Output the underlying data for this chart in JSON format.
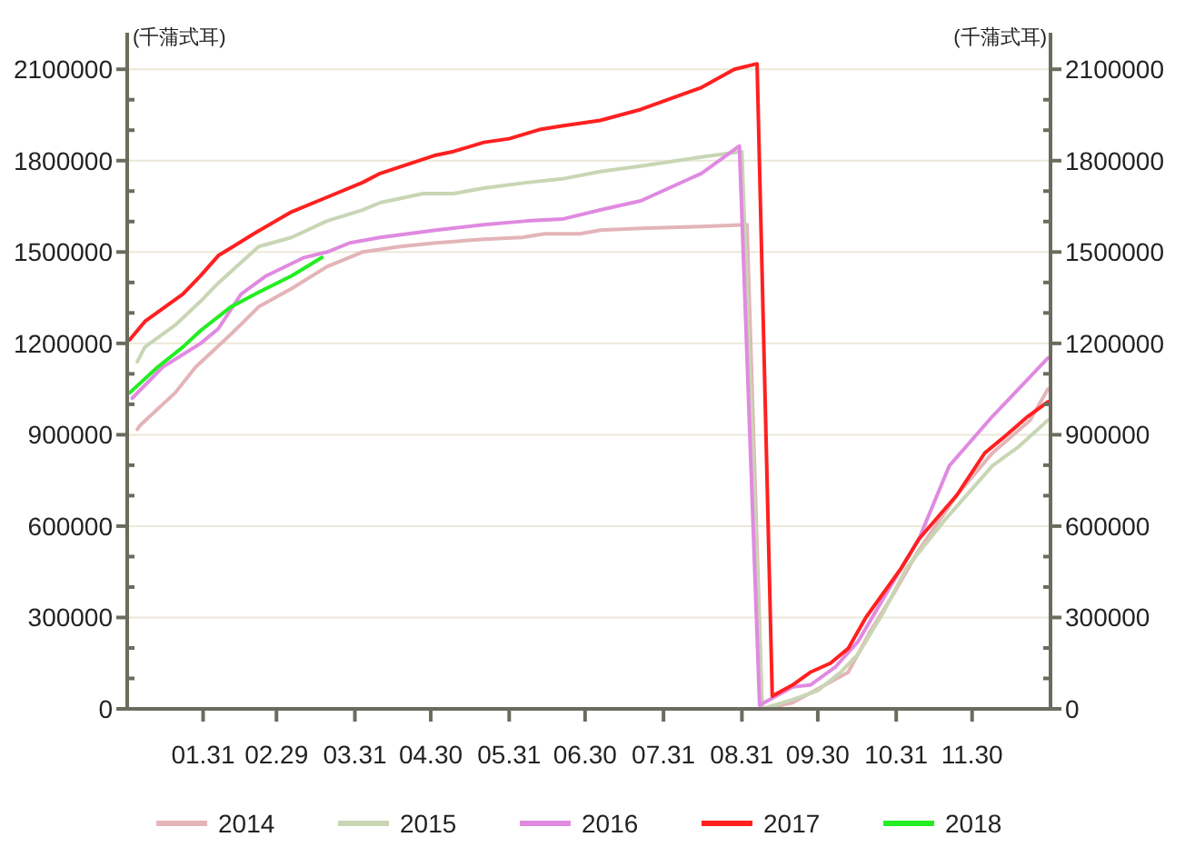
{
  "chart_data": {
    "type": "line",
    "ylabel": "(千蒲式耳)",
    "y2label": "(千蒲式耳)",
    "xlim": [
      "--01-01",
      "--12-31"
    ],
    "xticks": [
      {
        "value": "--01-31",
        "label": "01.31"
      },
      {
        "value": "--02-29",
        "label": "02.29"
      },
      {
        "value": "--03-31",
        "label": "03.31"
      },
      {
        "value": "--04-30",
        "label": "04.30"
      },
      {
        "value": "--05-31",
        "label": "05.31"
      },
      {
        "value": "--06-30",
        "label": "06.30"
      },
      {
        "value": "--07-31",
        "label": "07.31"
      },
      {
        "value": "--08-31",
        "label": "08.31"
      },
      {
        "value": "--09-30",
        "label": "09.30"
      },
      {
        "value": "--10-31",
        "label": "10.31"
      },
      {
        "value": "--11-30",
        "label": "11.30"
      }
    ],
    "ylim": [
      0,
      2220000
    ],
    "yticks": [
      0,
      {
        "value": 100000,
        "label": null
      },
      {
        "value": 200000,
        "label": null
      },
      300000,
      {
        "value": 400000,
        "label": null
      },
      {
        "value": 500000,
        "label": null
      },
      600000,
      {
        "value": 700000,
        "label": null
      },
      {
        "value": 800000,
        "label": null
      },
      900000,
      {
        "value": 1000000,
        "label": null
      },
      {
        "value": 1100000,
        "label": null
      },
      1200000,
      {
        "value": 1300000,
        "label": null
      },
      {
        "value": 1400000,
        "label": null
      },
      1500000,
      {
        "value": 1600000,
        "label": null
      },
      {
        "value": 1700000,
        "label": null
      },
      1800000,
      {
        "value": 1900000,
        "label": null
      },
      {
        "value": 2000000,
        "label": null
      },
      2100000
    ],
    "y2lim": [
      0,
      2220000
    ],
    "y2ticks": [
      0,
      {
        "value": 100000,
        "label": null
      },
      {
        "value": 200000,
        "label": null
      },
      300000,
      {
        "value": 400000,
        "label": null
      },
      {
        "value": 500000,
        "label": null
      },
      600000,
      {
        "value": 700000,
        "label": null
      },
      {
        "value": 800000,
        "label": null
      },
      900000,
      {
        "value": 1000000,
        "label": null
      },
      {
        "value": 1100000,
        "label": null
      },
      1200000,
      {
        "value": 1300000,
        "label": null
      },
      {
        "value": 1400000,
        "label": null
      },
      1500000,
      {
        "value": 1600000,
        "label": null
      },
      {
        "value": 1700000,
        "label": null
      },
      1800000,
      {
        "value": 1900000,
        "label": null
      },
      {
        "value": 2000000,
        "label": null
      },
      2100000
    ],
    "grid": "y",
    "legend": "bottom",
    "marker": "none",
    "line_style": "solid",
    "series": [
      {
        "name": "2014",
        "color": "#e3b4b8",
        "x": [
          "--01-05",
          "--01-06",
          "--01-20",
          "--01-28",
          "--02-11",
          "--02-22",
          "--03-06",
          "--03-20",
          "--04-03",
          "--04-18",
          "--05-02",
          "--05-21",
          "--06-05",
          "--06-14",
          "--06-28",
          "--07-06",
          "--07-22",
          "--08-15",
          "--09-02",
          "--09-08",
          "--09-20",
          "--10-12",
          "--10-21",
          "--10-30",
          "--11-09",
          "--11-24",
          "--12-08",
          "--12-23",
          "--12-30"
        ],
        "values": [
          918000,
          930000,
          1038000,
          1122000,
          1230000,
          1320000,
          1380000,
          1452000,
          1500000,
          1518000,
          1530000,
          1542000,
          1548000,
          1560000,
          1560000,
          1572000,
          1578000,
          1584000,
          1590000,
          0,
          20000,
          120000,
          258000,
          378000,
          522000,
          702000,
          840000,
          948000,
          1050000
        ]
      },
      {
        "name": "2015",
        "color": "#c8d6b4",
        "x": [
          "--01-05",
          "--01-08",
          "--01-20",
          "--01-30",
          "--02-06",
          "--02-22",
          "--03-06",
          "--03-20",
          "--04-03",
          "--04-10",
          "--04-27",
          "--05-09",
          "--05-21",
          "--06-07",
          "--06-21",
          "--07-06",
          "--07-22",
          "--08-15",
          "--08-31",
          "--09-08",
          "--09-20",
          "--09-30",
          "--10-09",
          "--10-16",
          "--10-26",
          "--11-04",
          "--11-19",
          "--12-08",
          "--12-18",
          "--12-30"
        ],
        "values": [
          1140000,
          1188000,
          1260000,
          1338000,
          1398000,
          1518000,
          1548000,
          1602000,
          1638000,
          1662000,
          1692000,
          1692000,
          1710000,
          1728000,
          1740000,
          1764000,
          1782000,
          1812000,
          1830000,
          0,
          30000,
          60000,
          120000,
          180000,
          318000,
          462000,
          618000,
          798000,
          858000,
          948000
        ]
      },
      {
        "name": "2016",
        "color": "#e08ae0",
        "x": [
          "--01-03",
          "--01-15",
          "--01-30",
          "--02-06",
          "--02-15",
          "--02-25",
          "--03-11",
          "--03-20",
          "--03-29",
          "--04-10",
          "--05-02",
          "--05-21",
          "--06-07",
          "--06-21",
          "--07-06",
          "--07-22",
          "--08-15",
          "--08-30",
          "--09-07",
          "--09-20",
          "--09-27",
          "--10-07",
          "--10-16",
          "--10-30",
          "--11-09",
          "--11-21",
          "--12-08",
          "--12-30"
        ],
        "values": [
          1020000,
          1122000,
          1200000,
          1248000,
          1362000,
          1422000,
          1482000,
          1500000,
          1530000,
          1548000,
          1572000,
          1590000,
          1602000,
          1608000,
          1638000,
          1668000,
          1758000,
          1848000,
          12000,
          72000,
          78000,
          138000,
          222000,
          420000,
          558000,
          798000,
          960000,
          1152000
        ]
      },
      {
        "name": "2017",
        "color": "#ff2020",
        "x": [
          "--01-02",
          "--01-08",
          "--01-23",
          "--01-30",
          "--02-06",
          "--02-20",
          "--03-06",
          "--03-20",
          "--04-03",
          "--04-10",
          "--05-02",
          "--05-09",
          "--05-21",
          "--05-31",
          "--06-12",
          "--06-21",
          "--07-06",
          "--07-22",
          "--08-15",
          "--08-28",
          "--09-06",
          "--09-12",
          "--09-20",
          "--09-27",
          "--10-05",
          "--10-12",
          "--10-19",
          "--11-02",
          "--11-09",
          "--11-24",
          "--12-05",
          "--12-12",
          "--12-22",
          "--12-30"
        ],
        "values": [
          1212000,
          1272000,
          1362000,
          1422000,
          1488000,
          1560000,
          1632000,
          1680000,
          1728000,
          1758000,
          1818000,
          1830000,
          1860000,
          1872000,
          1902000,
          1914000,
          1932000,
          1968000,
          2040000,
          2100000,
          2118000,
          42000,
          78000,
          120000,
          150000,
          198000,
          300000,
          462000,
          558000,
          702000,
          840000,
          888000,
          960000,
          1008000
        ]
      },
      {
        "name": "2018",
        "color": "#22ee22",
        "x": [
          "--01-02",
          "--01-13",
          "--01-23",
          "--01-30",
          "--02-11",
          "--02-22",
          "--03-06",
          "--03-18"
        ],
        "values": [
          1038000,
          1122000,
          1188000,
          1242000,
          1320000,
          1368000,
          1422000,
          1482000
        ]
      }
    ]
  }
}
